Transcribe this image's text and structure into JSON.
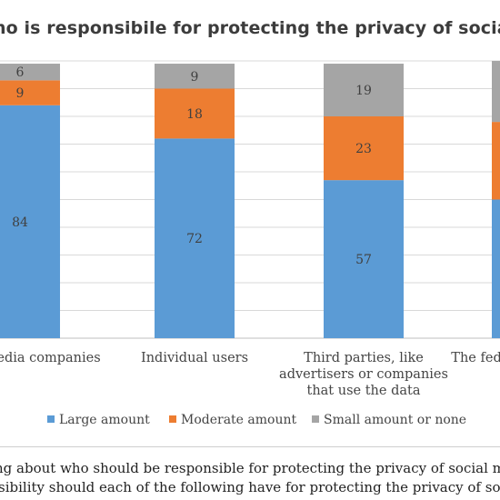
{
  "title": "Who is responsibile for protecting the privacy of social media users?",
  "colors": {
    "large": "#5b9bd5",
    "moderate": "#ed7d31",
    "small": "#a5a5a5",
    "grid": "#d9d9d9",
    "axis": "#bfbfbf",
    "label": "#404040"
  },
  "chart_data": {
    "type": "bar",
    "stacked": true,
    "orientation": "vertical",
    "categories": [
      "Social media companies",
      "Individual users",
      "Third parties, like advertisers or companies that use the data",
      "The federal government"
    ],
    "category_labels": [
      [
        "Social media companies"
      ],
      [
        "Individual users"
      ],
      [
        "Third parties, like",
        "advertisers or companies",
        "that use the data"
      ],
      [
        "The federal government"
      ]
    ],
    "series": [
      {
        "name": "Large amount",
        "values": [
          84,
          72,
          57,
          50
        ],
        "color": "#5b9bd5"
      },
      {
        "name": "Moderate amount",
        "values": [
          9,
          18,
          23,
          28
        ],
        "color": "#ed7d31"
      },
      {
        "name": "Small amount or none",
        "values": [
          6,
          9,
          19,
          22
        ],
        "color": "#a5a5a5"
      }
    ],
    "data_labels": true,
    "ylim": [
      0,
      100
    ],
    "grid": true,
    "legend": "bottom",
    "xlabel": "",
    "ylabel": ""
  },
  "legend_items": [
    "Large amount",
    "Moderate amount",
    "Small amount or none"
  ],
  "footnote": {
    "line1": "Thinking about who should be responsible for protecting the privacy of social media users, how much",
    "line2": "responsibility should each of the following have for protecting the privacy of social media users?"
  }
}
